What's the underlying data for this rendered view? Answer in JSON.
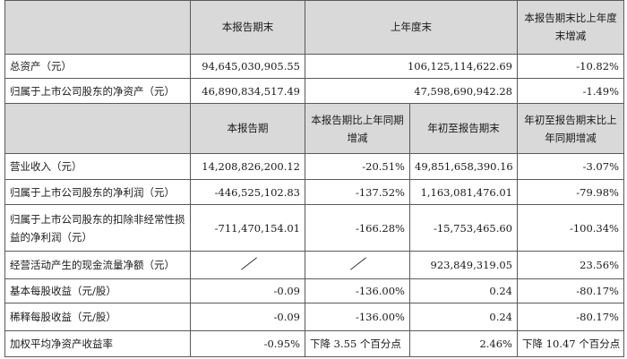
{
  "header1": {
    "blank": "",
    "current_end": "本报告期末",
    "prev_year_end": "上年度末",
    "change": "本报告期末比上年度末增减"
  },
  "rows1": [
    {
      "label": "总资产（元）",
      "current": "94,645,030,905.55",
      "prev": "106,125,114,622.69",
      "change": "-10.82%"
    },
    {
      "label": "归属于上市公司股东的净资产（元）",
      "current": "46,890,834,517.49",
      "prev": "47,598,690,942.28",
      "change": "-1.49%"
    }
  ],
  "header2": {
    "blank": "",
    "period": "本报告期",
    "period_change": "本报告期比上年同期增减",
    "ytd": "年初至报告期末",
    "ytd_change": "年初至报告期末比上年同期增减"
  },
  "rows2": [
    {
      "label": "营业收入（元）",
      "period": "14,208,826,200.12",
      "period_change": "-20.51%",
      "ytd": "49,851,658,390.16",
      "ytd_change": "-3.07%"
    },
    {
      "label": "归属于上市公司股东的净利润（元）",
      "period": "-446,525,102.83",
      "period_change": "-137.52%",
      "ytd": "1,163,081,476.01",
      "ytd_change": "-79.98%"
    },
    {
      "label": "归属于上市公司股东的扣除非经常性损益的净利润（元）",
      "period": "-711,470,154.01",
      "period_change": "-166.28%",
      "ytd": "-15,753,465.60",
      "ytd_change": "-100.34%"
    },
    {
      "label": "经营活动产生的现金流量净额（元）",
      "period": "",
      "period_change": "",
      "ytd": "923,849,319.05",
      "ytd_change": "23.56%"
    },
    {
      "label": "基本每股收益（元/股）",
      "period": "-0.09",
      "period_change": "-136.00%",
      "ytd": "0.24",
      "ytd_change": "-80.17%"
    },
    {
      "label": "稀释每股收益（元/股）",
      "period": "-0.09",
      "period_change": "-136.00%",
      "ytd": "0.24",
      "ytd_change": "-80.17%"
    },
    {
      "label": "加权平均净资产收益率",
      "period": "-0.95%",
      "period_change": "下降 3.55 个百分点",
      "ytd": "2.46%",
      "ytd_change": "下降 10.47 个百分点"
    }
  ]
}
